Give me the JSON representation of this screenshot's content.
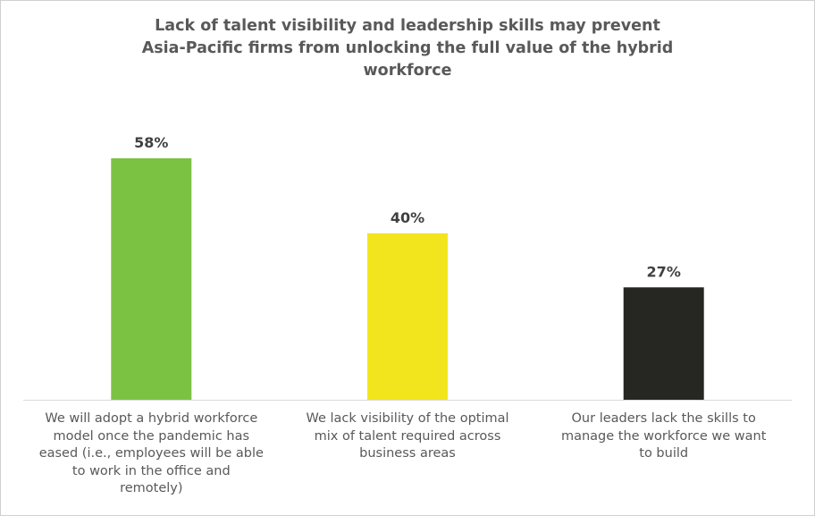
{
  "chart_data": {
    "type": "bar",
    "title": "Lack of talent visibility and leadership skills may prevent\nAsia-Pacific firms from unlocking the full value of the hybrid\nworkforce",
    "categories": [
      "We will adopt a hybrid workforce\nmodel once the pandemic has\neased (i.e., employees will be able\nto work in the office and\nremotely)",
      "We lack visibility of the optimal\nmix of talent required across\nbusiness areas",
      "Our leaders lack the skills to\nmanage the workforce we want\nto build"
    ],
    "values": [
      58,
      40,
      27
    ],
    "data_labels": [
      "58%",
      "40%",
      "27%"
    ],
    "colors": [
      "#7cc242",
      "#f2e51d",
      "#262623"
    ],
    "axis_color": "#d9d9d9",
    "ylim": [
      0,
      64
    ],
    "grid": false,
    "legend": "none"
  }
}
